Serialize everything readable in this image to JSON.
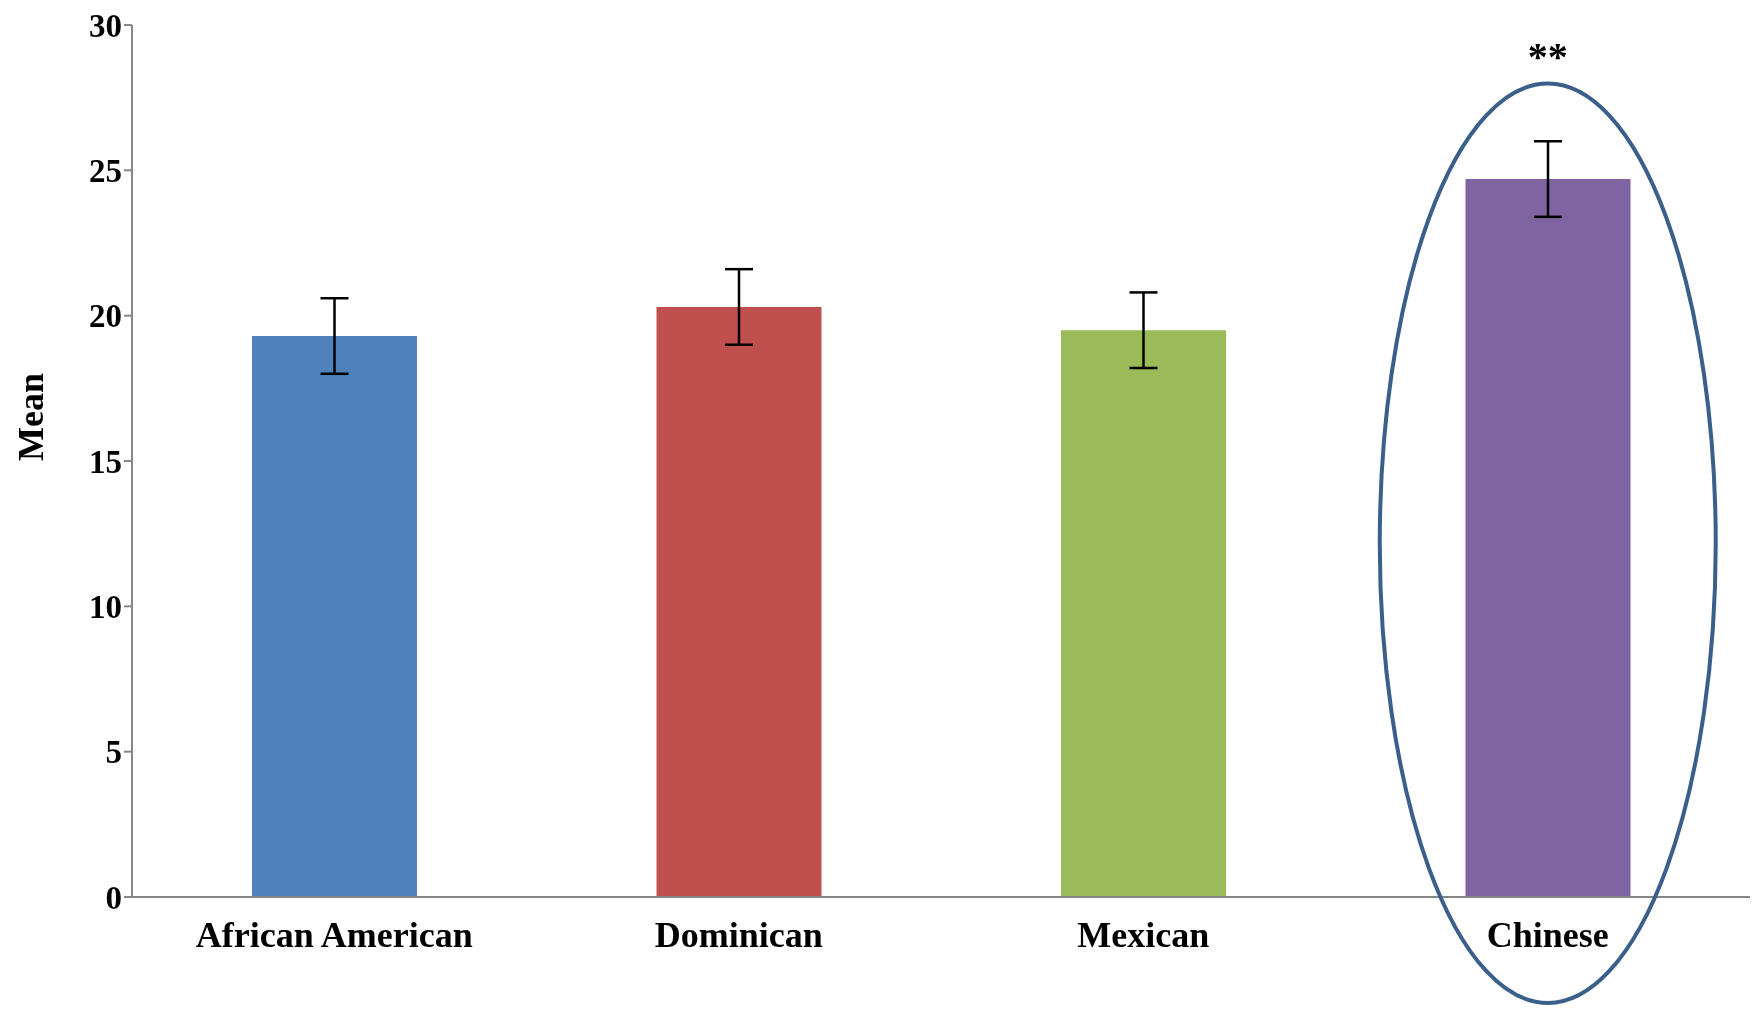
{
  "chart_data": {
    "type": "bar",
    "ylabel": "Mean",
    "categories": [
      "African American",
      "Dominican",
      "Mexican",
      "Chinese"
    ],
    "values": [
      19.3,
      20.3,
      19.5,
      24.7
    ],
    "errors": [
      1.3,
      1.3,
      1.3,
      1.3
    ],
    "colors": [
      "#4f81bd",
      "#c0504d",
      "#9bbb59",
      "#8064a2"
    ],
    "ylim": [
      0,
      30
    ],
    "yticks": [
      0,
      5,
      10,
      15,
      20,
      25,
      30
    ],
    "grid": false,
    "annotations": [
      "**"
    ]
  }
}
